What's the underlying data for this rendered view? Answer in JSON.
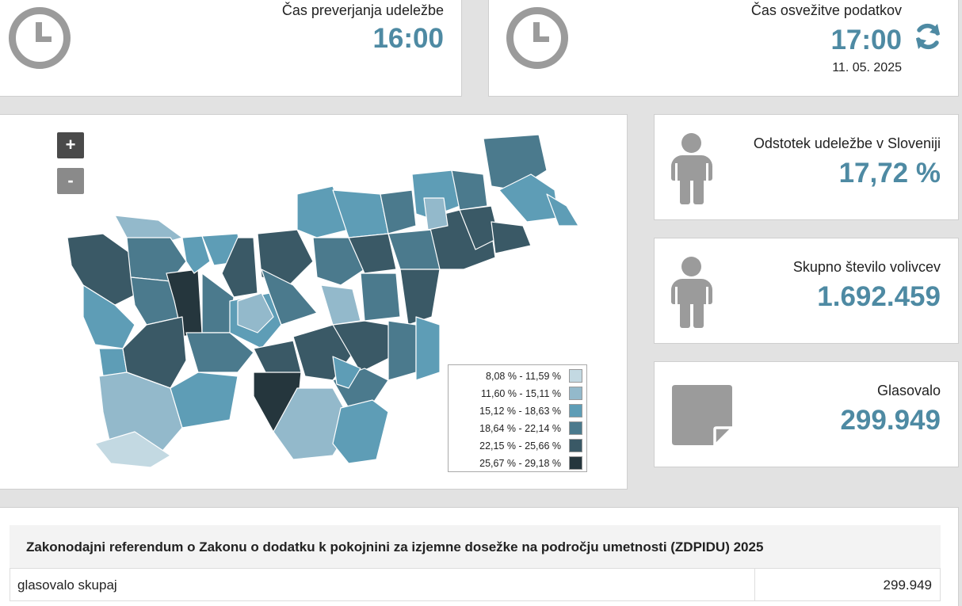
{
  "cards": {
    "check_time": {
      "label": "Čas preverjanja udeležbe",
      "value": "16:00"
    },
    "refresh_time": {
      "label": "Čas osvežitve podatkov",
      "value": "17:00",
      "date": "11. 05. 2025",
      "icon": "refresh-icon"
    },
    "turnout": {
      "label": "Odstotek udeležbe v Sloveniji",
      "value": "17,72 %",
      "icon": "person-icon"
    },
    "voters": {
      "label": "Skupno število volivcev",
      "value": "1.692.459",
      "icon": "person-icon"
    },
    "voted": {
      "label": "Glasovalo",
      "value": "299.949",
      "icon": "ballot-icon"
    }
  },
  "map": {
    "zoom_in": "+",
    "zoom_out": "-",
    "legend": [
      {
        "label": "8,08 % - 11,59 %",
        "color": "#c3d9e2"
      },
      {
        "label": "11,60 % - 15,11 %",
        "color": "#93b9cb"
      },
      {
        "label": "15,12 % - 18,63 %",
        "color": "#5e9db6"
      },
      {
        "label": "18,64 % - 22,14 %",
        "color": "#4b7a8d"
      },
      {
        "label": "22,15 % - 25,66 %",
        "color": "#3a5966"
      },
      {
        "label": "25,67 % - 29,18 %",
        "color": "#25363d"
      }
    ]
  },
  "table": {
    "title": "Zakonodajni referendum o Zakonu o dodatku k pokojnini za izjemne dosežke na področju umetnosti (ZDPIDU) 2025",
    "rows": [
      {
        "label": "glasovalo skupaj",
        "value": "299.949"
      }
    ]
  }
}
